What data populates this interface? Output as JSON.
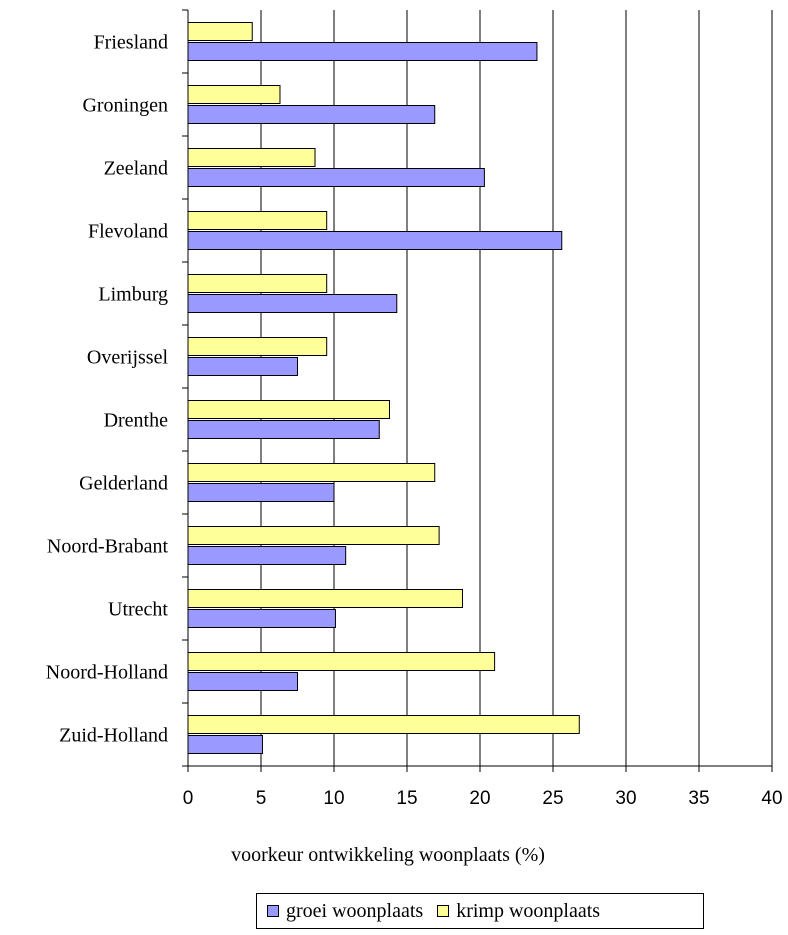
{
  "chart_data": {
    "type": "bar",
    "orientation": "horizontal",
    "categories": [
      "Friesland",
      "Groningen",
      "Zeeland",
      "Flevoland",
      "Limburg",
      "Overijssel",
      "Drenthe",
      "Gelderland",
      "Noord-Brabant",
      "Utrecht",
      "Noord-Holland",
      "Zuid-Holland"
    ],
    "series": [
      {
        "name": "krimp woonplaats",
        "color": "#ffff99",
        "values": [
          4.4,
          6.3,
          8.7,
          9.5,
          9.5,
          9.5,
          13.8,
          16.9,
          17.2,
          18.8,
          21.0,
          26.8
        ]
      },
      {
        "name": "groei woonplaats",
        "color": "#9999ff",
        "values": [
          23.9,
          16.9,
          20.3,
          25.6,
          14.3,
          7.5,
          13.1,
          10.0,
          10.8,
          10.1,
          7.5,
          5.1
        ]
      }
    ],
    "xlabel": "voorkeur ontwikkeling woonplaats (%)",
    "ylabel": "",
    "xlim": [
      0,
      40
    ],
    "xticks": [
      "0",
      "5",
      "10",
      "15",
      "20",
      "25",
      "30",
      "35",
      "40"
    ],
    "grid": "vertical",
    "legend": {
      "position": "bottom",
      "entries": [
        "groei woonplaats",
        "krimp woonplaats"
      ]
    }
  }
}
